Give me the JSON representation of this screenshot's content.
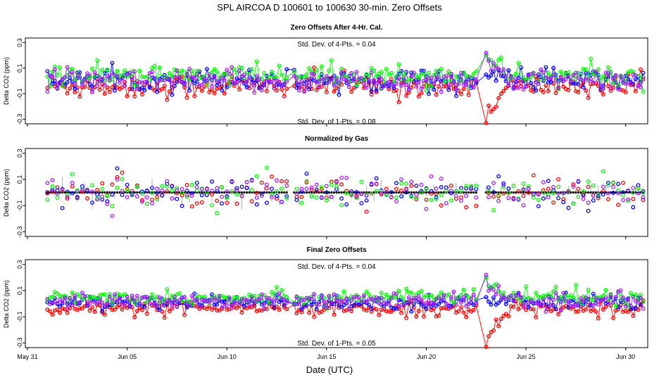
{
  "chart_data": {
    "type": "scatter",
    "title": "SPL    AIRCOA D   100601 to 100630   30-min. Zero Offsets",
    "xlabel": "Date (UTC)",
    "x_range_days": [
      0,
      31
    ],
    "x_ticks": [
      {
        "day": 0,
        "label": "May 31"
      },
      {
        "day": 5,
        "label": "Jun 05"
      },
      {
        "day": 10,
        "label": "Jun 10"
      },
      {
        "day": 15,
        "label": "Jun 15"
      },
      {
        "day": 20,
        "label": "Jun 20"
      },
      {
        "day": 25,
        "label": "Jun 25"
      },
      {
        "day": 30,
        "label": "Jun 30"
      }
    ],
    "series_colors": {
      "gas_1": "#ff0000",
      "gas_2": "#0000ff",
      "gas_3": "#00ff00",
      "gas_4": "#a020f0",
      "mean": "#000000"
    },
    "panels": [
      {
        "title": "Zero Offsets After 4-Hr. Cal.",
        "ylabel": "Delta CO2 (ppm)",
        "ylim": [
          -0.32,
          0.32
        ],
        "y_ticks": [
          {
            "v": 0.3,
            "label": "0.3"
          },
          {
            "v": 0.1,
            "label": "0.1"
          },
          {
            "v": -0.1,
            "label": "-0.1"
          },
          {
            "v": -0.3,
            "label": "-0.3"
          }
        ],
        "stat_top": "Std. Dev. of 4-Pts. =  0.04",
        "stat_bottom": "Std. Dev. of 1-Pts. =  0.08",
        "mode": "raw",
        "series_mean": {
          "gas_1": -0.04,
          "gas_2": 0.01,
          "gas_3": 0.04,
          "gas_4": 0.0
        },
        "noise": 0.055
      },
      {
        "title": "Normalized by Gas",
        "ylabel": "Delta CO2 (ppm)",
        "ylim": [
          -0.32,
          0.32
        ],
        "y_ticks": [
          {
            "v": 0.3,
            "label": "0.3"
          },
          {
            "v": 0.1,
            "label": "0.1"
          },
          {
            "v": -0.1,
            "label": "-0.1"
          },
          {
            "v": -0.3,
            "label": "-0.3"
          }
        ],
        "stat_top": "",
        "stat_bottom": "",
        "mode": "normalized",
        "series_mean": {
          "gas_1": 0.0,
          "gas_2": 0.0,
          "gas_3": 0.0,
          "gas_4": 0.0
        },
        "noise": 0.07
      },
      {
        "title": "Final Zero Offsets",
        "ylabel": "Delta CO2 (ppm)",
        "ylim": [
          -0.32,
          0.32
        ],
        "y_ticks": [
          {
            "v": 0.3,
            "label": "0.3"
          },
          {
            "v": 0.1,
            "label": "0.1"
          },
          {
            "v": -0.1,
            "label": "-0.1"
          },
          {
            "v": -0.3,
            "label": "-0.3"
          }
        ],
        "stat_top": "Std. Dev. of 4-Pts. =  0.04",
        "stat_bottom": "Std. Dev. of 1-Pts. =  0.05",
        "mode": "final",
        "series_mean": {
          "gas_1": -0.04,
          "gas_2": 0.01,
          "gas_3": 0.05,
          "gas_4": 0.02
        },
        "noise": 0.035
      }
    ],
    "data_start_day": 1.0,
    "data_end_day": 30.95,
    "gap_days": [
      [
        13.1,
        13.35
      ],
      [
        22.6,
        22.9
      ]
    ],
    "event_day": 22.95,
    "event_values": {
      "gas_1": -0.33,
      "gas_2": 0.05,
      "gas_3": 0.2,
      "gas_4": 0.22
    }
  }
}
